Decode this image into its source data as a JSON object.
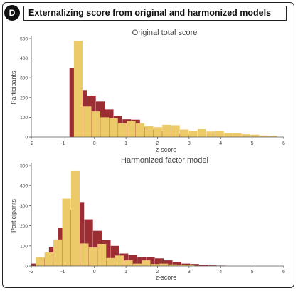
{
  "panel": {
    "label": "D",
    "title": "Externalizing score from original and harmonized models"
  },
  "colors": {
    "series_a": "#9b2d33",
    "series_b": "#ecca6a",
    "axis": "#555555",
    "text": "#444444"
  },
  "chart_data": [
    {
      "type": "bar",
      "title": "Original total score",
      "xlabel": "z-score",
      "ylabel": "Participants",
      "xlim": [
        -2,
        6
      ],
      "ylim": [
        0,
        500
      ],
      "xticks": [
        "-2",
        "-1",
        "0",
        "1",
        "2",
        "3",
        "4",
        "5",
        "6"
      ],
      "yticks": [
        "0",
        "100",
        "200",
        "300",
        "400",
        "500"
      ],
      "bin_width": 0.28,
      "series": [
        {
          "color_key": "series_a",
          "x": [
            -0.65,
            -0.37,
            -0.09,
            0.19,
            0.47,
            0.75,
            1.03,
            1.31,
            1.59,
            1.87,
            2.15,
            2.43,
            2.71,
            2.99
          ],
          "values": [
            348,
            238,
            210,
            180,
            140,
            108,
            90,
            88,
            52,
            38,
            28,
            28,
            15,
            10
          ]
        },
        {
          "color_key": "series_b",
          "x": [
            -0.51,
            -0.23,
            0.05,
            0.33,
            0.61,
            0.89,
            1.17,
            1.45,
            1.73,
            2.01,
            2.29,
            2.57,
            2.85,
            3.13,
            3.41,
            3.69,
            3.97,
            4.25,
            4.53,
            4.81,
            5.09,
            5.37,
            5.65
          ],
          "values": [
            488,
            155,
            130,
            100,
            95,
            70,
            82,
            70,
            55,
            50,
            62,
            60,
            38,
            30,
            40,
            28,
            30,
            20,
            20,
            14,
            12,
            8,
            6
          ]
        }
      ]
    },
    {
      "type": "bar",
      "title": "Harmonized factor model",
      "xlabel": "z-score",
      "ylabel": "Participants",
      "xlim": [
        -2,
        6
      ],
      "ylim": [
        0,
        500
      ],
      "xticks": [
        "-2",
        "-1",
        "0",
        "1",
        "2",
        "3",
        "4",
        "5",
        "6"
      ],
      "yticks": [
        "0",
        "100",
        "200",
        "300",
        "400",
        "500"
      ],
      "bin_width": 0.28,
      "series": [
        {
          "color_key": "series_a",
          "x": [
            -1.86,
            -1.58,
            -1.3,
            -1.02,
            -0.74,
            -0.46,
            -0.18,
            0.1,
            0.38,
            0.66,
            0.94,
            1.22,
            1.5,
            1.78,
            2.06,
            2.34,
            2.62,
            2.9,
            3.18,
            3.46,
            3.74,
            4.02
          ],
          "values": [
            12,
            40,
            95,
            190,
            278,
            318,
            232,
            175,
            130,
            100,
            62,
            55,
            45,
            45,
            38,
            28,
            18,
            12,
            10,
            5,
            3,
            2
          ]
        },
        {
          "color_key": "series_b",
          "x": [
            -1.72,
            -1.44,
            -1.16,
            -0.88,
            -0.6,
            -0.32,
            -0.04,
            0.24,
            0.52,
            0.8,
            1.08,
            1.36,
            1.64,
            1.92,
            2.2,
            2.48,
            2.76,
            3.04
          ],
          "values": [
            45,
            68,
            132,
            335,
            472,
            112,
            92,
            110,
            40,
            52,
            28,
            12,
            28,
            10,
            12,
            8,
            5,
            4
          ]
        }
      ]
    }
  ]
}
